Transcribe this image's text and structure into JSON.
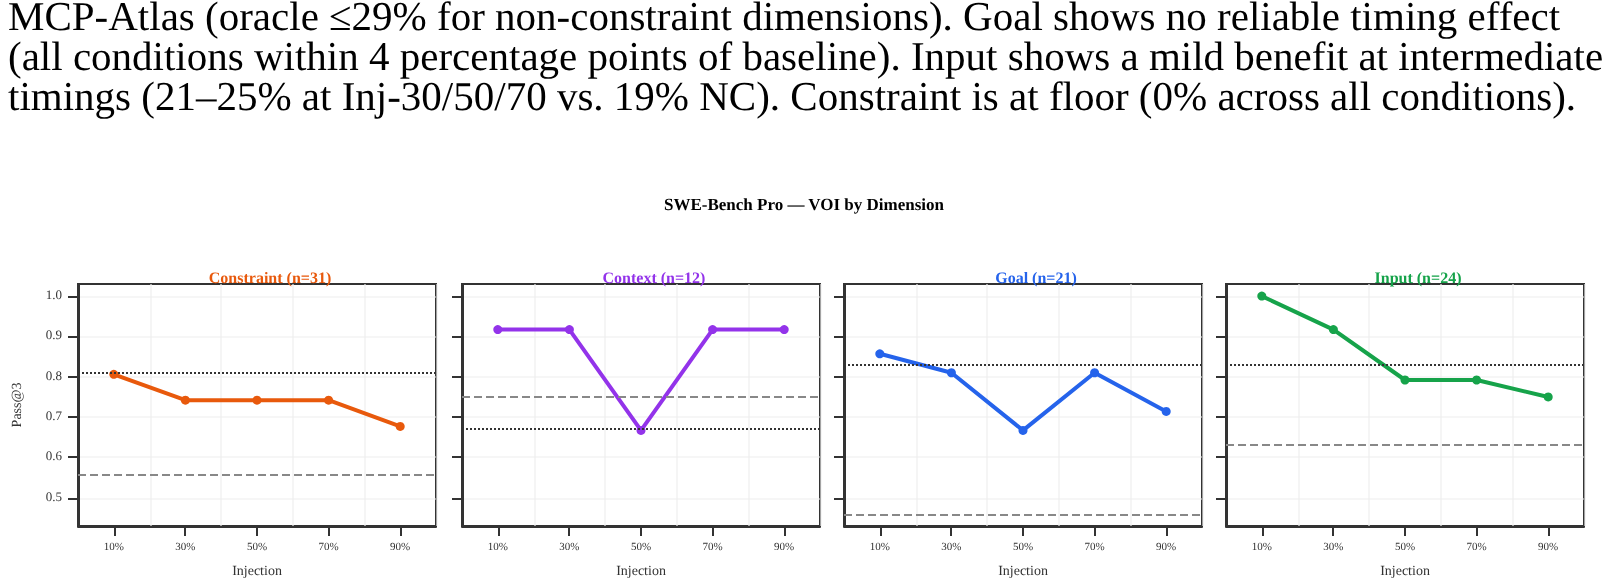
{
  "chart_data": [
    {
      "type": "other",
      "title": "SWE-Bench Pro — VOI by Dimension",
      "annotations": [
        "MCP-Atlas (oracle ≤29% for non-constraint dimensions). Goal shows no reliable timing effect (all conditions within 4 percentage points of baseline). Input shows a mild benefit at intermediate timings (21–25% at Inj-30/50/70 vs. 19% NC). Constraint is at floor (0% across all conditions)."
      ]
    },
    {
      "type": "line",
      "title": "Constraint (n=31)",
      "xlabel": "Injection",
      "ylabel": "Pass@3",
      "categories": [
        "10%",
        "30%",
        "50%",
        "70%",
        "90%"
      ],
      "series": [
        {
          "color": "#e8590c",
          "values": [
            0.806,
            0.742,
            0.742,
            0.742,
            0.677
          ]
        }
      ],
      "ref_lines": [
        {
          "axis": "y",
          "value": 0.81,
          "color": "#333333",
          "line_style": "dotted"
        },
        {
          "axis": "y",
          "value": 0.56,
          "color": "#888888",
          "line_style": "dashed"
        }
      ],
      "ylim": [
        0.43,
        1.03
      ],
      "yticks": [
        0.5,
        0.6,
        0.7,
        0.8,
        0.9,
        {
          "value": 1,
          "label": "1.0"
        }
      ],
      "grid": true,
      "marker": "circle",
      "line_style": "solid"
    },
    {
      "type": "line",
      "title": "Context (n=12)",
      "xlabel": "Injection",
      "categories": [
        "10%",
        "30%",
        "50%",
        "70%",
        "90%"
      ],
      "series": [
        {
          "color": "#9333ea",
          "values": [
            0.917,
            0.917,
            0.667,
            0.917,
            0.917
          ]
        }
      ],
      "ref_lines": [
        {
          "axis": "y",
          "value": 0.667,
          "color": "#333333",
          "line_style": "dotted"
        },
        {
          "axis": "y",
          "value": 0.75,
          "color": "#888888",
          "line_style": "dashed"
        }
      ],
      "ylim": [
        0.43,
        1.03
      ],
      "yticks": [
        0.5,
        0.6,
        0.7,
        0.8,
        0.9,
        1.0
      ],
      "tick_labels": "x",
      "grid": true,
      "marker": "circle",
      "line_style": "solid"
    },
    {
      "type": "line",
      "title": "Goal (n=21)",
      "xlabel": "Injection",
      "categories": [
        "10%",
        "30%",
        "50%",
        "70%",
        "90%"
      ],
      "series": [
        {
          "color": "#2563eb",
          "values": [
            0.857,
            0.81,
            0.667,
            0.81,
            0.714
          ]
        }
      ],
      "ref_lines": [
        {
          "axis": "y",
          "value": 0.83,
          "color": "#333333",
          "line_style": "dotted"
        },
        {
          "axis": "y",
          "value": 0.46,
          "color": "#888888",
          "line_style": "dashed"
        }
      ],
      "ylim": [
        0.43,
        1.03
      ],
      "yticks": [
        0.5,
        0.6,
        0.7,
        0.8,
        0.9,
        1.0
      ],
      "tick_labels": "x",
      "grid": true,
      "marker": "circle",
      "line_style": "solid"
    },
    {
      "type": "line",
      "title": "Input (n=24)",
      "xlabel": "Injection",
      "categories": [
        "10%",
        "30%",
        "50%",
        "70%",
        "90%"
      ],
      "series": [
        {
          "color": "#16a34a",
          "values": [
            1.0,
            0.917,
            0.792,
            0.792,
            0.75
          ]
        }
      ],
      "ref_lines": [
        {
          "axis": "y",
          "value": 0.833,
          "color": "#333333",
          "line_style": "dotted"
        },
        {
          "axis": "y",
          "value": 0.625,
          "color": "#888888",
          "line_style": "dashed"
        }
      ],
      "ylim": [
        0.43,
        1.03
      ],
      "yticks": [
        0.5,
        0.6,
        0.7,
        0.8,
        0.9,
        1.0
      ],
      "tick_labels": "x",
      "grid": true,
      "marker": "circle",
      "line_style": "solid"
    }
  ]
}
